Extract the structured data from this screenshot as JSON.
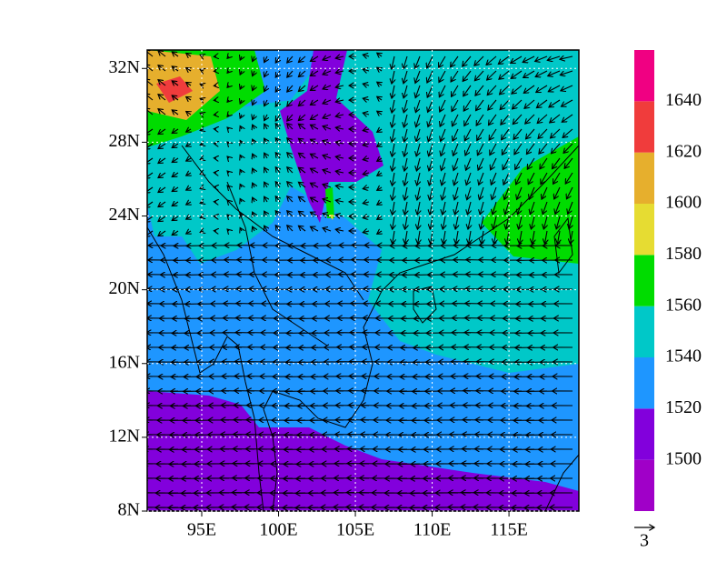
{
  "map": {
    "xlim": [
      91.45,
      119.55
    ],
    "ylim": [
      8,
      33
    ],
    "xticks": [
      {
        "value": 95,
        "label": "95E"
      },
      {
        "value": 100,
        "label": "100E"
      },
      {
        "value": 105,
        "label": "105E"
      },
      {
        "value": 110,
        "label": "110E"
      },
      {
        "value": 115,
        "label": "115E"
      }
    ],
    "yticks": [
      {
        "value": 8,
        "label": "8N"
      },
      {
        "value": 12,
        "label": "12N"
      },
      {
        "value": 16,
        "label": "16N"
      },
      {
        "value": 20,
        "label": "20N"
      },
      {
        "value": 24,
        "label": "24N"
      },
      {
        "value": 28,
        "label": "28N"
      },
      {
        "value": 32,
        "label": "32N"
      }
    ],
    "grid": true
  },
  "colorbar": {
    "range": [
      1480,
      1660
    ],
    "levels": [
      1500,
      1520,
      1540,
      1560,
      1580,
      1600,
      1620,
      1640
    ],
    "colors": [
      "#a000c8",
      "#8200dc",
      "#1e96ff",
      "#00c8c8",
      "#00dc00",
      "#e6dc32",
      "#e6af2d",
      "#f03c3c",
      "#f00082"
    ]
  },
  "vector_key": {
    "label": "3"
  }
}
